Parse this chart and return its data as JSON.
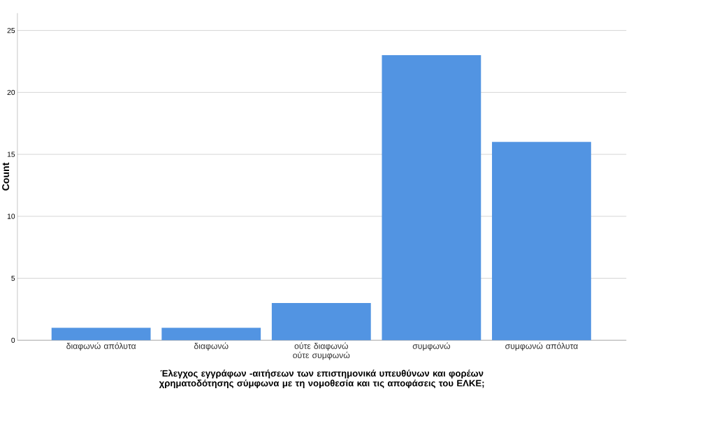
{
  "chart_data": {
    "type": "bar",
    "xlabel": "Έλεγχος εγγράφων -αιτήσεων των επιστημονικά υπευθύνων και φορέων χρηματοδότησης σύμφωνα με τη νομοθεσία και τις αποφάσεις του ΕΛΚΕ;",
    "ylabel": "Count",
    "categories": [
      "διαφωνώ απόλυτα",
      "διαφωνώ",
      "ούτε διαφωνώ ούτε συμφωνώ",
      "συμφωνώ",
      "συμφωνώ απόλυτα"
    ],
    "values": [
      1,
      1,
      3,
      23,
      16
    ],
    "color": "#5294e2",
    "ylim": [
      0,
      26.4
    ],
    "yticks": [
      0,
      5,
      10,
      15,
      20,
      25
    ],
    "grid": "y"
  }
}
